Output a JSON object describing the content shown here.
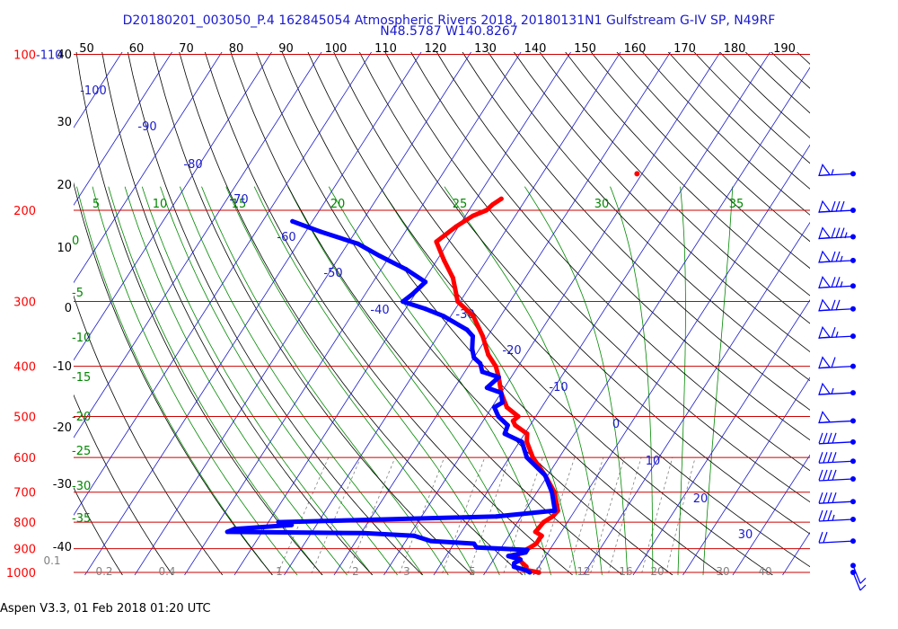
{
  "title": "D20180201_003050_P.4 162845054 Atmospheric Rivers 2018, 20180131N1 Gulfstream G-IV SP, N49RF",
  "subtitle": "N48.5787 W140.8267",
  "footer": "Aspen V3.3, 01 Feb 2018  01:20 UTC",
  "chart_data": {
    "type": "line",
    "chart_kind": "skew-T log-P thermodynamic diagram",
    "colors": {
      "temperature": "#ff0000",
      "dewpoint": "#0000ff",
      "isobar": "#cc0000",
      "isotherm": "#1a1acc",
      "dry_adiabat": "#000000",
      "moist_adiabat": "#008800",
      "mixing_ratio": "#808080",
      "title": "#1a1acc"
    },
    "y_scale": "log",
    "ylim": [
      1000,
      100
    ],
    "pressure_ticks": [
      100,
      200,
      300,
      400,
      500,
      600,
      700,
      800,
      900,
      1000
    ],
    "top_pressure_label": "-110",
    "x_top_ticks": [
      "50",
      "60",
      "70",
      "80",
      "90",
      "100",
      "110",
      "120",
      "130",
      "140",
      "150",
      "160",
      "170",
      "180",
      "190"
    ],
    "left_dry_adiabat_labels": [
      "40",
      "30",
      "20",
      "10",
      "0",
      "-10",
      "-20",
      "-30",
      "-40"
    ],
    "moist_adiabat_labels": [
      "5",
      "10",
      "15",
      "20",
      "25",
      "30",
      "35"
    ],
    "left_moist_labels": [
      "0",
      "-5",
      "-10",
      "-15",
      "-20",
      "-25",
      "-30",
      "-35"
    ],
    "mixing_ratio_labels": [
      "0.1",
      "0.2",
      "0.4",
      "1",
      "2",
      "3",
      "5",
      "8",
      "12",
      "16",
      "20",
      "30",
      "40"
    ],
    "isotherm_labels": [
      "-100",
      "-90",
      "-80",
      "-70",
      "-60",
      "-50",
      "-40",
      "-30",
      "-20",
      "-10",
      "0",
      "10",
      "20",
      "30"
    ],
    "series": [
      {
        "name": "Temperature",
        "pressure_hPa": [
          1000,
          990,
          975,
          950,
          925,
          900,
          880,
          862,
          850,
          835,
          820,
          800,
          780,
          760,
          700,
          650,
          600,
          560,
          540,
          520,
          510,
          500,
          480,
          450,
          420,
          400,
          380,
          350,
          320,
          300,
          270,
          250,
          230,
          215,
          205,
          200,
          195,
          190
        ],
        "temp_C": [
          10.7,
          8.0,
          7.5,
          5.5,
          4.0,
          5.5,
          6.5,
          6.5,
          6.6,
          4.8,
          5.0,
          5.2,
          6.3,
          6.6,
          3.5,
          -0.5,
          -5.3,
          -8.5,
          -9.5,
          -13.0,
          -14.0,
          -13.5,
          -17.0,
          -20.0,
          -22.5,
          -24.5,
          -27.5,
          -31.0,
          -35.5,
          -40.5,
          -44.5,
          -48.5,
          -52.5,
          -50.5,
          -48.5,
          -46.5,
          -46.0,
          -45.0
        ]
      },
      {
        "name": "Dew Point",
        "pressure_hPa": [
          1000,
          990,
          975,
          960,
          945,
          930,
          915,
          905,
          895,
          880,
          870,
          850,
          840,
          835,
          825,
          810,
          800,
          780,
          760,
          700,
          650,
          600,
          560,
          540,
          520,
          500,
          480,
          470,
          450,
          440,
          420,
          410,
          395,
          385,
          370,
          350,
          340,
          320,
          310,
          300,
          290,
          275,
          260,
          245,
          232,
          220,
          210
        ],
        "temp_C": [
          8.9,
          7.8,
          5.0,
          4.6,
          5.4,
          2.5,
          5.5,
          5.5,
          -5.0,
          -6.0,
          -15.0,
          -19.0,
          -29.5,
          -57.0,
          -56.0,
          -45.0,
          -48.0,
          -5.0,
          6.0,
          3.0,
          -0.5,
          -6.5,
          -9.5,
          -14.0,
          -14.5,
          -17.5,
          -19.5,
          -18.5,
          -20.0,
          -23.5,
          -22.5,
          -26.5,
          -28.0,
          -30.0,
          -31.5,
          -33.0,
          -35.0,
          -41.5,
          -46.0,
          -51.5,
          -50.5,
          -49.5,
          -55.0,
          -62.0,
          -68.0,
          -77.0,
          -84.0
        ]
      }
    ],
    "isolated_point": {
      "pressure_hPa": 170,
      "temp_C": -21
    },
    "winds": [
      {
        "pressure_hPa": 170,
        "direction": "W",
        "speed_kt": 55
      },
      {
        "pressure_hPa": 200,
        "direction": "W",
        "speed_kt": 80
      },
      {
        "pressure_hPa": 225,
        "direction": "W",
        "speed_kt": 85
      },
      {
        "pressure_hPa": 250,
        "direction": "W",
        "speed_kt": 75
      },
      {
        "pressure_hPa": 280,
        "direction": "W",
        "speed_kt": 75
      },
      {
        "pressure_hPa": 310,
        "direction": "W",
        "speed_kt": 70
      },
      {
        "pressure_hPa": 350,
        "direction": "W",
        "speed_kt": 65
      },
      {
        "pressure_hPa": 400,
        "direction": "W",
        "speed_kt": 60
      },
      {
        "pressure_hPa": 450,
        "direction": "W",
        "speed_kt": 55
      },
      {
        "pressure_hPa": 510,
        "direction": "W",
        "speed_kt": 50
      },
      {
        "pressure_hPa": 560,
        "direction": "W",
        "speed_kt": 40
      },
      {
        "pressure_hPa": 610,
        "direction": "W",
        "speed_kt": 40
      },
      {
        "pressure_hPa": 660,
        "direction": "W",
        "speed_kt": 40
      },
      {
        "pressure_hPa": 730,
        "direction": "W",
        "speed_kt": 40
      },
      {
        "pressure_hPa": 790,
        "direction": "W",
        "speed_kt": 35
      },
      {
        "pressure_hPa": 870,
        "direction": "W",
        "speed_kt": 20
      },
      {
        "pressure_hPa": 970,
        "direction": "S",
        "speed_kt": 5
      },
      {
        "pressure_hPa": 1000,
        "direction": "S",
        "speed_kt": 10
      }
    ]
  }
}
